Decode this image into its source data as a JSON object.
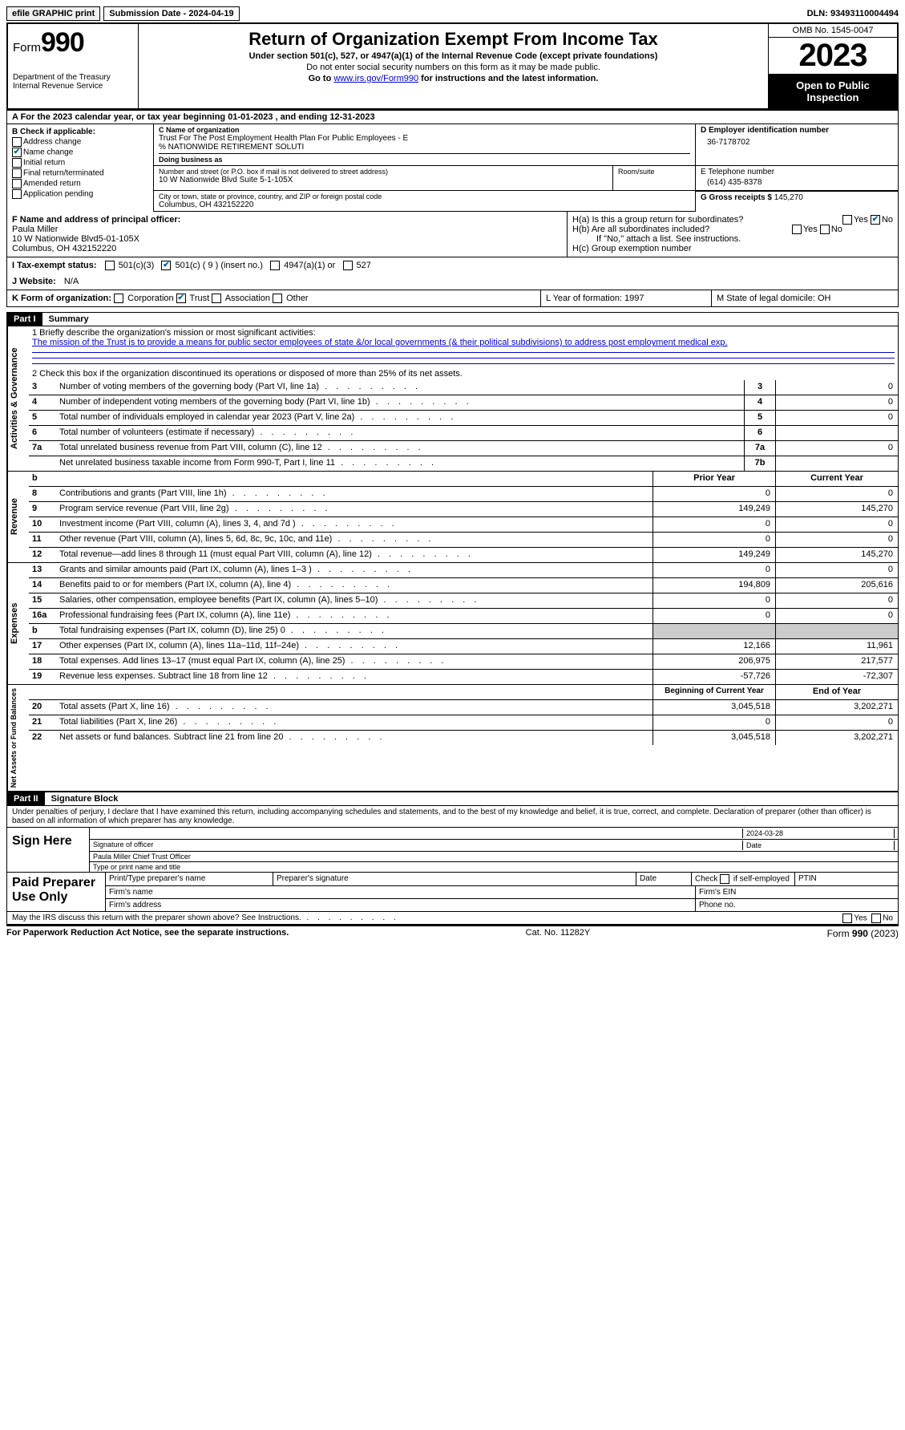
{
  "topbar": {
    "efile": "efile GRAPHIC print",
    "submission": "Submission Date - 2024-04-19",
    "dln": "DLN: 93493110004494"
  },
  "header": {
    "form": "Form",
    "formnum": "990",
    "title": "Return of Organization Exempt From Income Tax",
    "subtitle": "Under section 501(c), 527, or 4947(a)(1) of the Internal Revenue Code (except private foundations)",
    "ssn_note": "Do not enter social security numbers on this form as it may be made public.",
    "goto": "Go to ",
    "goto_link": "www.irs.gov/Form990",
    "goto_after": " for instructions and the latest information.",
    "dept": "Department of the Treasury\nInternal Revenue Service",
    "omb": "OMB No. 1545-0047",
    "year": "2023",
    "inspect": "Open to Public Inspection"
  },
  "rowA": "A For the 2023 calendar year, or tax year beginning 01-01-2023    , and ending 12-31-2023",
  "colB": {
    "title": "B Check if applicable:",
    "items": [
      {
        "label": "Address change",
        "checked": false
      },
      {
        "label": "Name change",
        "checked": true
      },
      {
        "label": "Initial return",
        "checked": false
      },
      {
        "label": "Final return/terminated",
        "checked": false
      },
      {
        "label": "Amended return",
        "checked": false
      },
      {
        "label": "Application pending",
        "checked": false
      }
    ]
  },
  "colC": {
    "name_lbl": "C Name of organization",
    "name": "Trust For The Post Employment Health Plan For Public Employees - E\n% NATIONWIDE RETIREMENT SOLUTI",
    "dba_lbl": "Doing business as",
    "addr_lbl": "Number and street (or P.O. box if mail is not delivered to street address)",
    "addr": "10 W Nationwide Blvd Suite 5-1-105X",
    "room_lbl": "Room/suite",
    "city_lbl": "City or town, state or province, country, and ZIP or foreign postal code",
    "city": "Columbus, OH  432152220"
  },
  "colD": {
    "ein_lbl": "D Employer identification number",
    "ein": "36-7178702",
    "tel_lbl": "E Telephone number",
    "tel": "(614) 435-8378",
    "gross_lbl": "G Gross receipts $ ",
    "gross": "145,270"
  },
  "sectionF": {
    "f_lbl": "F Name and address of principal officer:",
    "f_val": "Paula Miller\n10 W Nationwide Blvd5-01-105X\nColumbus, OH  432152220",
    "ha": "H(a)  Is this a group return for subordinates?",
    "hb": "H(b)  Are all subordinates included?",
    "hb_note": "If \"No,\" attach a list. See instructions.",
    "hc": "H(c)  Group exemption number"
  },
  "lineI": {
    "label": "I   Tax-exempt status:",
    "opts": [
      "501(c)(3)",
      "501(c) ( 9 ) (insert no.)",
      "4947(a)(1) or",
      "527"
    ],
    "checked_idx": 1
  },
  "lineJ": {
    "label": "J   Website:",
    "val": "N/A"
  },
  "lineK": {
    "label": "K Form of organization:",
    "opts": [
      "Corporation",
      "Trust",
      "Association",
      "Other"
    ],
    "checked_idx": 1,
    "L": "L Year of formation: 1997",
    "M": "M State of legal domicile: OH"
  },
  "part1": {
    "header": "Part I",
    "title": "Summary",
    "mission_lbl": "1   Briefly describe the organization's mission or most significant activities:",
    "mission": "The mission of the Trust is to provide a means for public sector employees of state &/or local governments (& their political subdivisions) to address post employment medical exp.",
    "line2": "2   Check this box      if the organization discontinued its operations or disposed of more than 25% of its net assets."
  },
  "gov_rows": [
    {
      "num": "3",
      "text": "Number of voting members of the governing body (Part VI, line 1a)",
      "box": "3",
      "val": "0"
    },
    {
      "num": "4",
      "text": "Number of independent voting members of the governing body (Part VI, line 1b)",
      "box": "4",
      "val": "0"
    },
    {
      "num": "5",
      "text": "Total number of individuals employed in calendar year 2023 (Part V, line 2a)",
      "box": "5",
      "val": "0"
    },
    {
      "num": "6",
      "text": "Total number of volunteers (estimate if necessary)",
      "box": "6",
      "val": ""
    },
    {
      "num": "7a",
      "text": "Total unrelated business revenue from Part VIII, column (C), line 12",
      "box": "7a",
      "val": "0"
    },
    {
      "num": "",
      "text": "Net unrelated business taxable income from Form 990-T, Part I, line 11",
      "box": "7b",
      "val": ""
    }
  ],
  "two_col_header": {
    "prior": "Prior Year",
    "current": "Current Year"
  },
  "revenue_rows": [
    {
      "num": "8",
      "text": "Contributions and grants (Part VIII, line 1h)",
      "prior": "0",
      "current": "0"
    },
    {
      "num": "9",
      "text": "Program service revenue (Part VIII, line 2g)",
      "prior": "149,249",
      "current": "145,270"
    },
    {
      "num": "10",
      "text": "Investment income (Part VIII, column (A), lines 3, 4, and 7d )",
      "prior": "0",
      "current": "0"
    },
    {
      "num": "11",
      "text": "Other revenue (Part VIII, column (A), lines 5, 6d, 8c, 9c, 10c, and 11e)",
      "prior": "0",
      "current": "0"
    },
    {
      "num": "12",
      "text": "Total revenue—add lines 8 through 11 (must equal Part VIII, column (A), line 12)",
      "prior": "149,249",
      "current": "145,270"
    }
  ],
  "expense_rows": [
    {
      "num": "13",
      "text": "Grants and similar amounts paid (Part IX, column (A), lines 1–3 )",
      "prior": "0",
      "current": "0"
    },
    {
      "num": "14",
      "text": "Benefits paid to or for members (Part IX, column (A), line 4)",
      "prior": "194,809",
      "current": "205,616"
    },
    {
      "num": "15",
      "text": "Salaries, other compensation, employee benefits (Part IX, column (A), lines 5–10)",
      "prior": "0",
      "current": "0"
    },
    {
      "num": "16a",
      "text": "Professional fundraising fees (Part IX, column (A), line 11e)",
      "prior": "0",
      "current": "0"
    },
    {
      "num": "b",
      "text": "Total fundraising expenses (Part IX, column (D), line 25) 0",
      "prior": "",
      "current": "",
      "grey": true
    },
    {
      "num": "17",
      "text": "Other expenses (Part IX, column (A), lines 11a–11d, 11f–24e)",
      "prior": "12,166",
      "current": "11,961"
    },
    {
      "num": "18",
      "text": "Total expenses. Add lines 13–17 (must equal Part IX, column (A), line 25)",
      "prior": "206,975",
      "current": "217,577"
    },
    {
      "num": "19",
      "text": "Revenue less expenses. Subtract line 18 from line 12",
      "prior": "-57,726",
      "current": "-72,307"
    }
  ],
  "net_header": {
    "prior": "Beginning of Current Year",
    "current": "End of Year"
  },
  "net_rows": [
    {
      "num": "20",
      "text": "Total assets (Part X, line 16)",
      "prior": "3,045,518",
      "current": "3,202,271"
    },
    {
      "num": "21",
      "text": "Total liabilities (Part X, line 26)",
      "prior": "0",
      "current": "0"
    },
    {
      "num": "22",
      "text": "Net assets or fund balances. Subtract line 21 from line 20",
      "prior": "3,045,518",
      "current": "3,202,271"
    }
  ],
  "part2": {
    "header": "Part II",
    "title": "Signature Block",
    "decl": "Under penalties of perjury, I declare that I have examined this return, including accompanying schedules and statements, and to the best of my knowledge and belief, it is true, correct, and complete. Declaration of preparer (other than officer) is based on all information of which preparer has any knowledge."
  },
  "sign": {
    "here": "Sign Here",
    "sig_lbl": "Signature of officer",
    "name": "Paula Miller  Chief Trust Officer",
    "name_lbl": "Type or print name and title",
    "date": "2024-03-28"
  },
  "paid": {
    "label": "Paid Preparer Use Only",
    "h1": "Print/Type preparer's name",
    "h2": "Preparer's signature",
    "h3": "Date",
    "h4": "Check       if self-employed",
    "h5": "PTIN",
    "firm_name": "Firm's name",
    "firm_ein": "Firm's EIN",
    "firm_addr": "Firm's address",
    "phone": "Phone no."
  },
  "discuss": "May the IRS discuss this return with the preparer shown above? See Instructions.",
  "footer": {
    "left": "For Paperwork Reduction Act Notice, see the separate instructions.",
    "mid": "Cat. No. 11282Y",
    "right": "Form 990 (2023)"
  },
  "labels": {
    "yes": "Yes",
    "no": "No",
    "revenue": "Revenue",
    "expenses": "Expenses",
    "governance": "Activities & Governance",
    "netassets": "Net Assets or Fund Balances"
  }
}
